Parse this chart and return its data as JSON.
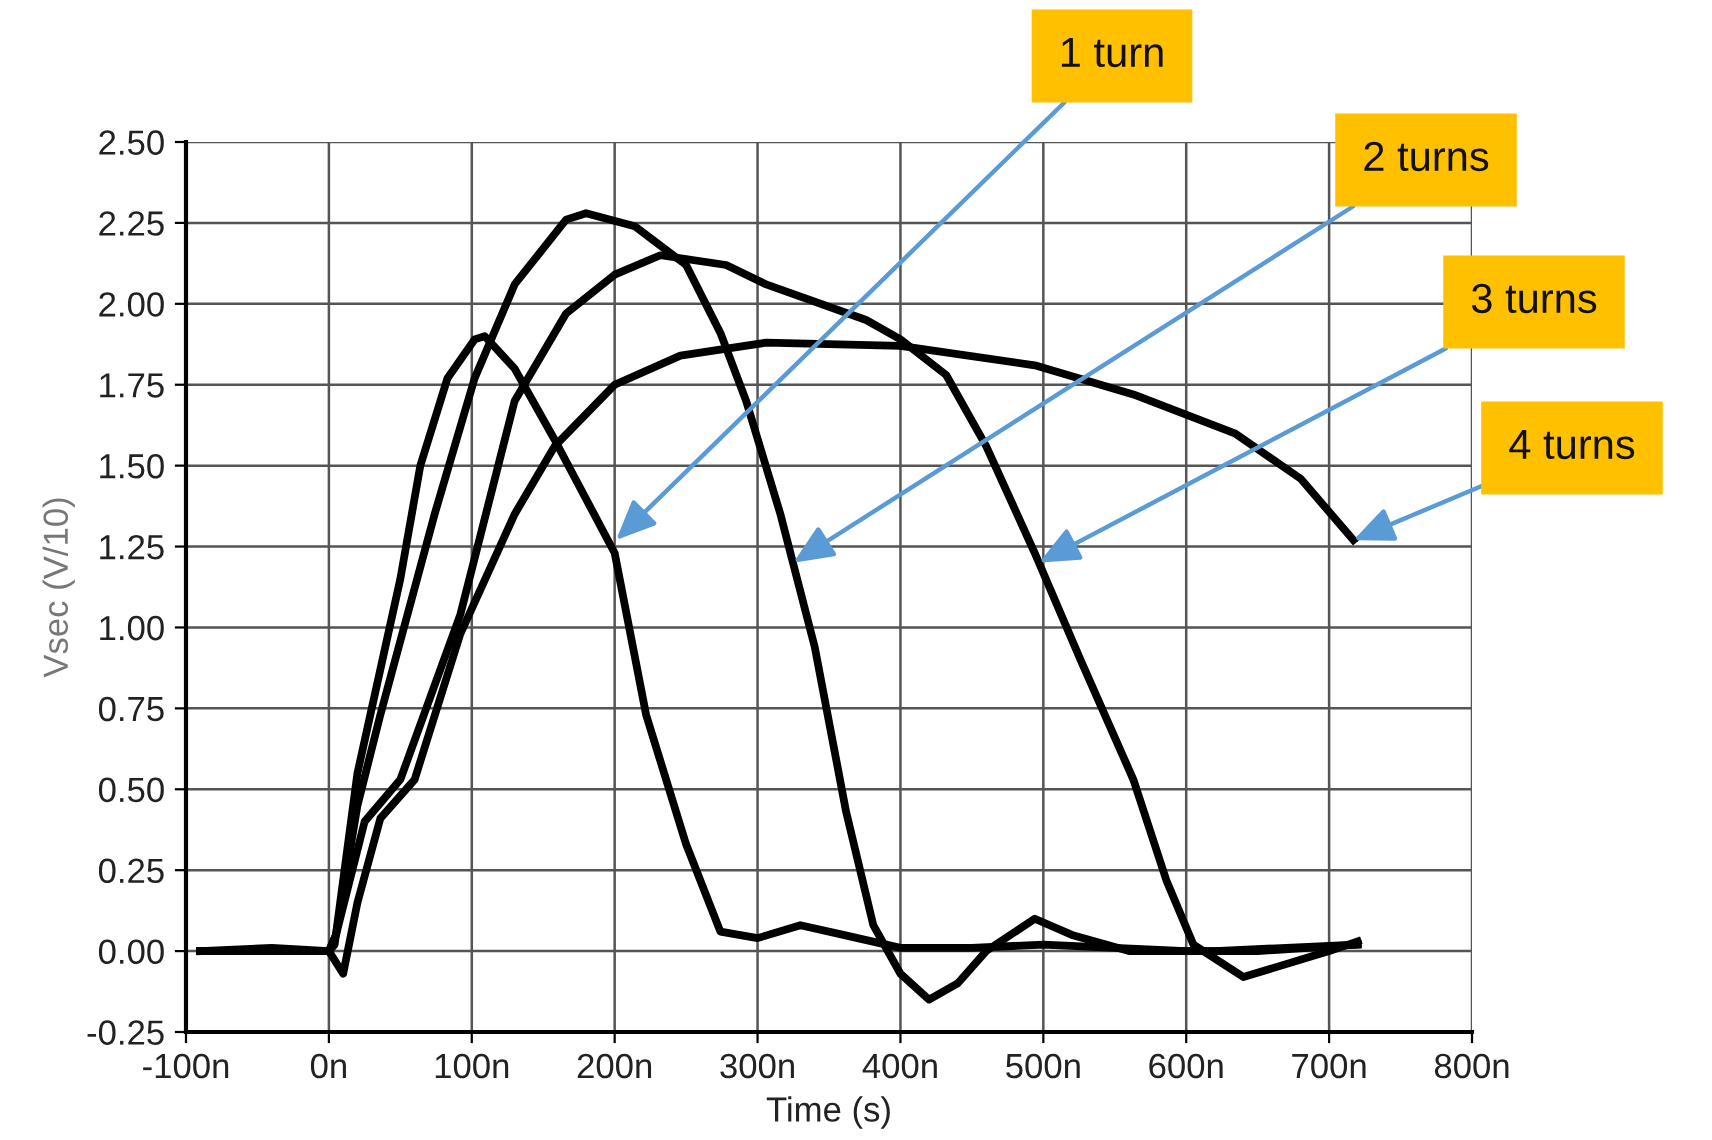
{
  "chart_data": {
    "type": "line",
    "xlabel": "Time (s)",
    "ylabel": "Vsec (V/10)",
    "xlim": [
      -100,
      800
    ],
    "ylim": [
      -0.25,
      2.5
    ],
    "xticks": [
      {
        "value": -100,
        "label": "-100n"
      },
      {
        "value": 0,
        "label": "0n"
      },
      {
        "value": 100,
        "label": "100n"
      },
      {
        "value": 200,
        "label": "200n"
      },
      {
        "value": 300,
        "label": "300n"
      },
      {
        "value": 400,
        "label": "400n"
      },
      {
        "value": 500,
        "label": "500n"
      },
      {
        "value": 600,
        "label": "600n"
      },
      {
        "value": 700,
        "label": "700n"
      },
      {
        "value": 800,
        "label": "800n"
      }
    ],
    "yticks": [
      {
        "value": -0.25,
        "label": "-0.25"
      },
      {
        "value": 0,
        "label": "0.00"
      },
      {
        "value": 0.25,
        "label": "0.25"
      },
      {
        "value": 0.5,
        "label": "0.50"
      },
      {
        "value": 0.75,
        "label": "0.75"
      },
      {
        "value": 1,
        "label": "1.00"
      },
      {
        "value": 1.25,
        "label": "1.25"
      },
      {
        "value": 1.5,
        "label": "1.50"
      },
      {
        "value": 1.75,
        "label": "1.75"
      },
      {
        "value": 2,
        "label": "2.00"
      },
      {
        "value": 2.25,
        "label": "2.25"
      },
      {
        "value": 2.5,
        "label": "2.50"
      }
    ],
    "grid": true,
    "marker": "none",
    "line_style": "solid",
    "series": [
      {
        "color": "#000000",
        "x": [
          -90,
          -40,
          0,
          4,
          20,
          50,
          64,
          83,
          102,
          109,
          130,
          158,
          200,
          222,
          250,
          274,
          300,
          330,
          360,
          400,
          450,
          500,
          550,
          600,
          650,
          720
        ],
        "values": [
          0,
          0.01,
          0,
          0.02,
          0.55,
          1.15,
          1.5,
          1.77,
          1.89,
          1.9,
          1.8,
          1.58,
          1.23,
          0.73,
          0.33,
          0.06,
          0.04,
          0.08,
          0.05,
          0.01,
          0.01,
          0.02,
          0.01,
          0,
          0,
          0.02
        ]
      },
      {
        "color": "#000000",
        "x": [
          -90,
          0,
          5,
          20,
          36,
          74,
          102,
          130,
          166,
          180,
          214,
          232,
          250,
          274,
          292,
          316,
          340,
          362,
          381,
          400,
          420,
          440,
          460,
          494,
          520,
          560,
          620,
          720
        ],
        "values": [
          0,
          0,
          0.05,
          0.45,
          0.73,
          1.35,
          1.77,
          2.06,
          2.26,
          2.28,
          2.24,
          2.18,
          2.12,
          1.91,
          1.7,
          1.35,
          0.94,
          0.43,
          0.08,
          -0.07,
          -0.15,
          -0.1,
          0,
          0.1,
          0.05,
          0,
          0,
          0.02
        ]
      },
      {
        "color": "#000000",
        "x": [
          -90,
          0,
          5,
          25,
          50,
          92,
          130,
          166,
          200,
          232,
          278,
          306,
          376,
          400,
          432,
          460,
          494,
          526,
          563,
          586,
          605,
          640,
          700,
          720
        ],
        "values": [
          0,
          0,
          0.05,
          0.4,
          0.53,
          1.04,
          1.7,
          1.97,
          2.09,
          2.15,
          2.12,
          2.06,
          1.95,
          1.89,
          1.78,
          1.56,
          1.23,
          0.9,
          0.53,
          0.22,
          0.02,
          -0.08,
          0,
          0.03
        ]
      },
      {
        "color": "#000000",
        "x": [
          -90,
          0,
          10,
          20,
          36,
          60,
          92,
          130,
          158,
          200,
          246,
          306,
          400,
          494,
          563,
          634,
          680,
          717
        ],
        "values": [
          0,
          0,
          -0.07,
          0.15,
          0.41,
          0.53,
          0.98,
          1.35,
          1.56,
          1.75,
          1.84,
          1.88,
          1.87,
          1.81,
          1.72,
          1.6,
          1.46,
          1.27
        ]
      }
    ],
    "annotations": [
      {
        "text": "1 turn",
        "x": 201,
        "y": 1.27
      },
      {
        "text": "2 turns",
        "x": 325,
        "y": 1.2
      },
      {
        "text": "3 turns",
        "x": 497,
        "y": 1.2
      },
      {
        "text": "4 turns",
        "x": 717,
        "y": 1.27
      }
    ]
  }
}
